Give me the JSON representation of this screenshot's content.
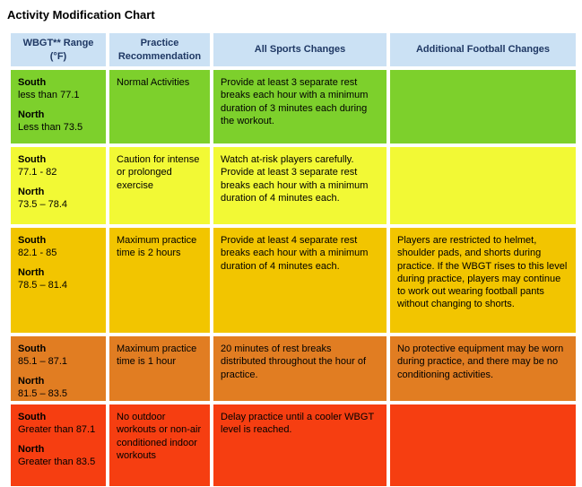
{
  "page": {
    "title": "Activity Modification Chart"
  },
  "colors": {
    "header_bg": "#CBE1F4",
    "header_text": "#1F3864",
    "level_green": "#7DD02C",
    "level_yellow": "#F2F935",
    "level_amber": "#F2C500",
    "level_orange": "#E17D22",
    "level_red": "#F63E11"
  },
  "table": {
    "headers": [
      "WBGT** Range (°F)",
      "Practice Recommendation",
      "All Sports Changes",
      "Additional Football Changes"
    ],
    "rows": [
      {
        "color": "#7DD02C",
        "wbgt": {
          "south_label": "South",
          "south_value": "less than 77.1",
          "north_label": "North",
          "north_value": "Less than 73.5"
        },
        "practice": "Normal Activities",
        "all_sports": "Provide at least 3 separate rest breaks each hour with a minimum duration of 3 minutes each during the workout.",
        "football": ""
      },
      {
        "color": "#F2F935",
        "wbgt": {
          "south_label": "South",
          "south_value": "77.1 - 82",
          "north_label": "North",
          "north_value": "73.5 – 78.4"
        },
        "practice": "Caution for intense or prolonged exercise",
        "all_sports": "Watch at-risk players carefully. Provide at least 3 separate rest breaks each hour with a minimum duration of 4 minutes each.",
        "football": ""
      },
      {
        "color": "#F2C500",
        "wbgt": {
          "south_label": "South",
          "south_value": "82.1 - 85",
          "north_label": "North",
          "north_value": "78.5 – 81.4"
        },
        "practice": "Maximum practice time is 2 hours",
        "all_sports": "Provide at least 4 separate rest breaks each hour with a minimum duration of 4 minutes each.",
        "football": "Players are restricted to helmet, shoulder pads, and shorts during practice. If the WBGT rises to this level during practice, players may continue to work out wearing football pants without changing to shorts."
      },
      {
        "color": "#E17D22",
        "wbgt": {
          "south_label": "South",
          "south_value": "85.1 – 87.1",
          "north_label": "North",
          "north_value": "81.5 – 83.5"
        },
        "practice": "Maximum practice time is 1 hour",
        "all_sports": "20 minutes of rest breaks distributed throughout the hour of practice.",
        "football": "No protective equipment may be worn during practice, and there may be no conditioning activities."
      },
      {
        "color": "#F63E11",
        "wbgt": {
          "south_label": "South",
          "south_value": "Greater than 87.1",
          "north_label": "North",
          "north_value": "Greater than 83.5"
        },
        "practice": "No outdoor workouts or non-air conditioned indoor workouts",
        "all_sports": "Delay practice until a cooler WBGT level is reached.",
        "football": ""
      }
    ]
  }
}
